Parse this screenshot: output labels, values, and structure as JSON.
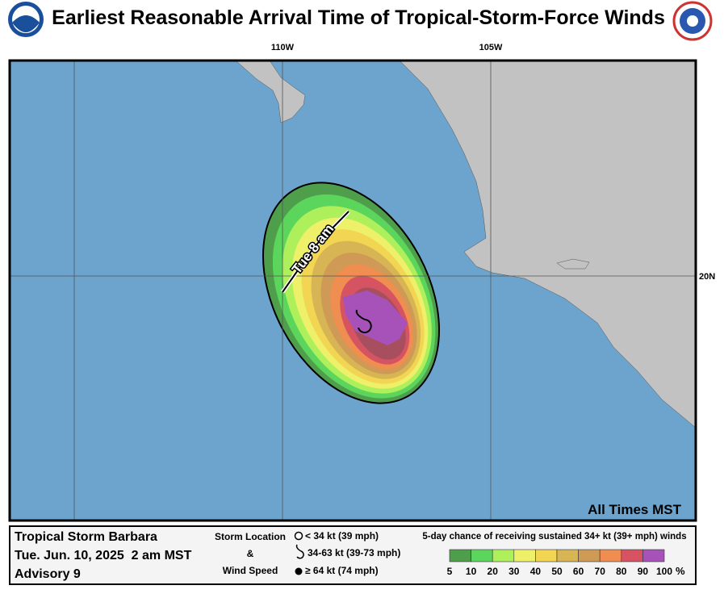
{
  "header": {
    "title": "Earliest Reasonable Arrival Time of Tropical-Storm-Force Winds"
  },
  "map": {
    "lon_labels": [
      "110W",
      "105W"
    ],
    "lat_labels": [
      "20N"
    ],
    "contour_label": "Tue   8   am",
    "time_zone": "All Times MST"
  },
  "footer": {
    "storm": "Tropical Storm Barbara",
    "time": "Tue. Jun. 10, 2025  2 am MST",
    "advisory": "Advisory 9",
    "storm_key": {
      "title_1": "Storm Location",
      "title_2": "&",
      "title_3": "Wind Speed",
      "entries": [
        "< 34 kt (39 mph)",
        "34-63 kt (39-73 mph)",
        "≥ 64 kt (74 mph)"
      ]
    },
    "probability": {
      "title": "5-day chance of receiving sustained 34+ kt (39+ mph) winds",
      "levels": [
        5,
        10,
        20,
        30,
        40,
        50,
        60,
        70,
        80,
        90,
        100
      ],
      "unit": "%",
      "colors": [
        "#4f9e4c",
        "#5bd55b",
        "#aef05c",
        "#eef06a",
        "#f2d552",
        "#d7b454",
        "#cf9a55",
        "#ef8e50",
        "#d65462",
        "#a84f5f",
        "#a752b8"
      ]
    }
  }
}
